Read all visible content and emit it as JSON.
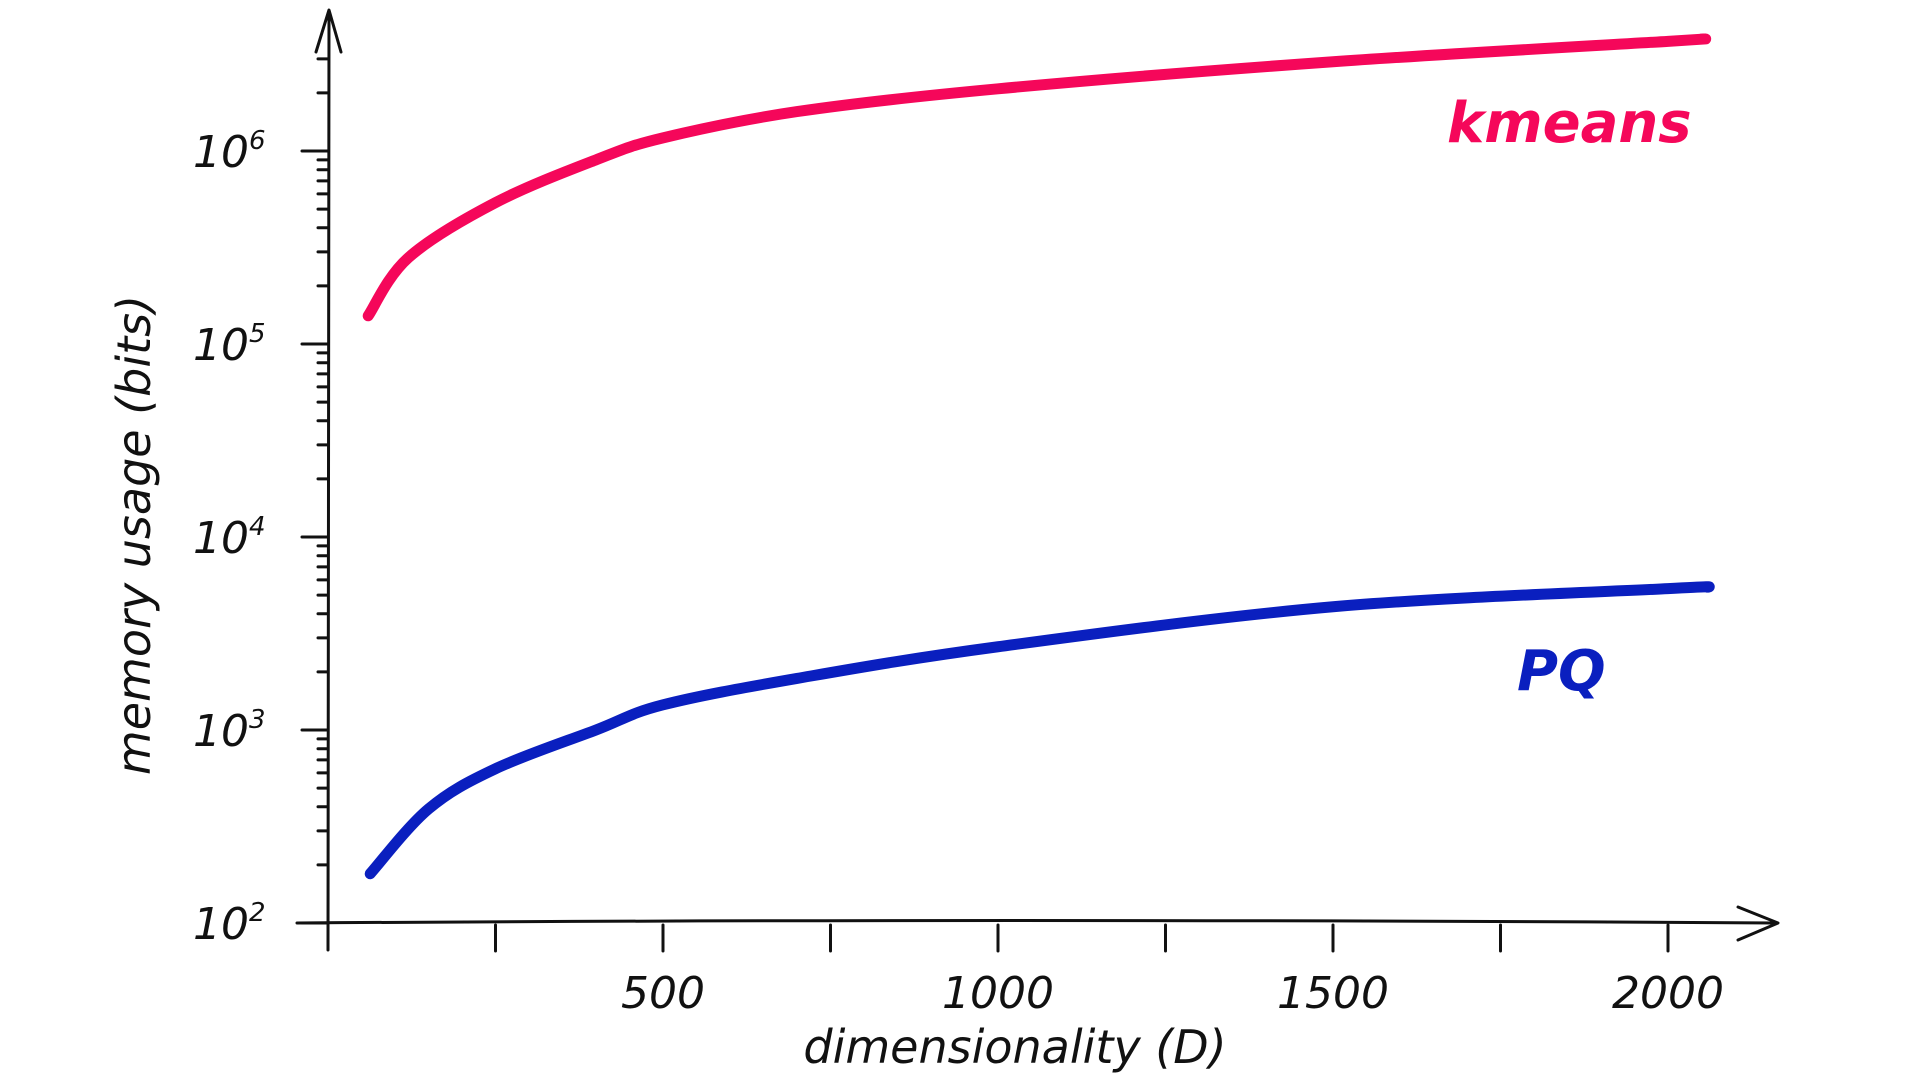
{
  "chart_data": {
    "type": "line",
    "title": "",
    "xlabel": "dimensionality (D)",
    "ylabel": "memory usage (bits)",
    "xscale": "linear",
    "yscale": "log",
    "xlim": [
      0,
      2150
    ],
    "ylim": [
      100,
      10000000
    ],
    "x_ticks": [
      500,
      1000,
      1500,
      2000
    ],
    "x_tick_labels": [
      "500",
      "1000",
      "1500",
      "2000"
    ],
    "y_ticks": [
      100,
      1000,
      10000,
      100000,
      1000000
    ],
    "y_tick_labels": [
      {
        "base": "10",
        "exp": "2"
      },
      {
        "base": "10",
        "exp": "3"
      },
      {
        "base": "10",
        "exp": "4"
      },
      {
        "base": "10",
        "exp": "5"
      },
      {
        "base": "10",
        "exp": "6"
      }
    ],
    "grid": false,
    "legend": "inline labels at right end of lines",
    "series": [
      {
        "name": "kmeans",
        "color": "#f5075a",
        "x": [
          60,
          120,
          250,
          400,
          500,
          700,
          1000,
          1500,
          2000,
          2050
        ],
        "y": [
          140000,
          280000,
          540000,
          900000,
          1170000,
          1600000,
          2100000,
          2900000,
          3700000,
          3800000
        ]
      },
      {
        "name": "PQ",
        "color": "#0a1fbf",
        "x": [
          63,
          150,
          250,
          400,
          500,
          700,
          1000,
          1500,
          2000,
          2060
        ],
        "y": [
          180,
          390,
          630,
          1000,
          1350,
          1850,
          2700,
          4350,
          5400,
          5500
        ]
      }
    ]
  }
}
